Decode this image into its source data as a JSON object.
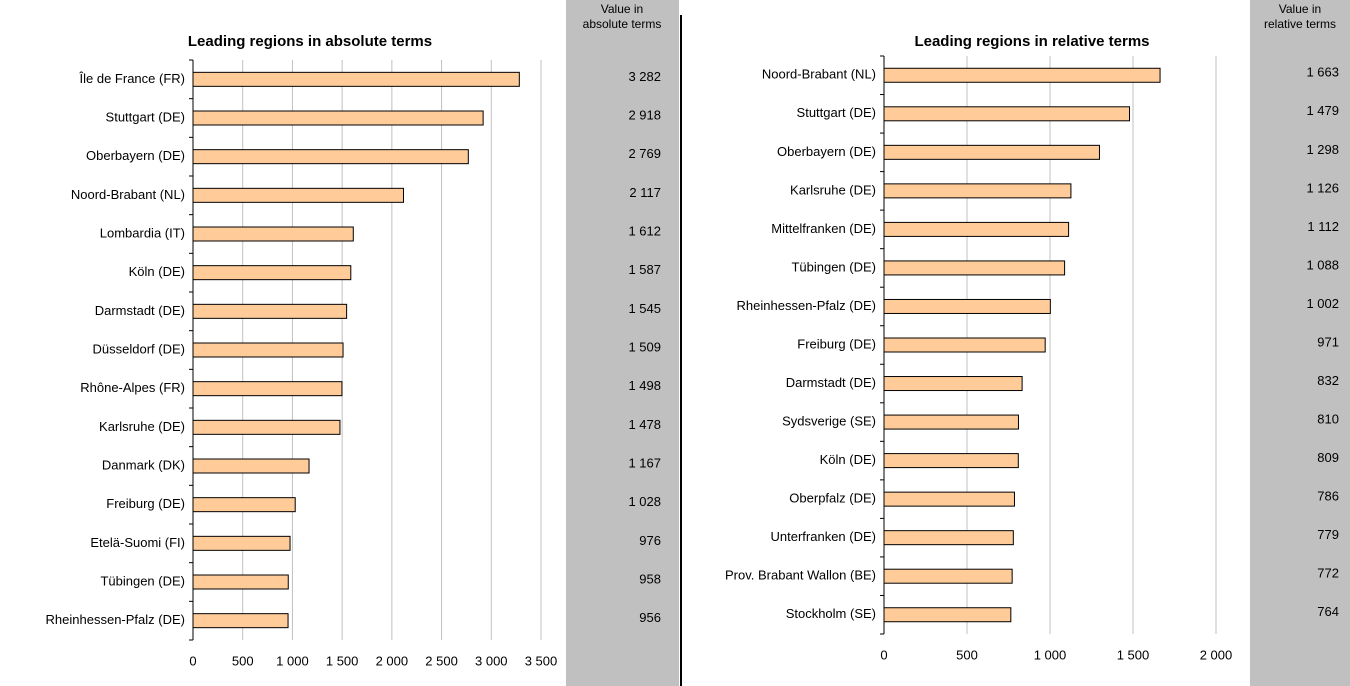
{
  "chart_data": [
    {
      "type": "bar",
      "orientation": "horizontal",
      "title": "Leading regions in absolute terms",
      "column_header": [
        "Value in",
        "absolute terms"
      ],
      "categories": [
        "Île de France (FR)",
        "Stuttgart (DE)",
        "Oberbayern (DE)",
        "Noord-Brabant (NL)",
        "Lombardia (IT)",
        "Köln (DE)",
        "Darmstadt (DE)",
        "Düsseldorf (DE)",
        "Rhône-Alpes (FR)",
        "Karlsruhe (DE)",
        "Danmark (DK)",
        "Freiburg (DE)",
        "Etelä-Suomi (FI)",
        "Tübingen (DE)",
        "Rheinhessen-Pfalz (DE)"
      ],
      "values": [
        3282,
        2918,
        2769,
        2117,
        1612,
        1587,
        1545,
        1509,
        1498,
        1478,
        1167,
        1028,
        976,
        958,
        956
      ],
      "value_labels": [
        "3 282",
        "2 918",
        "2 769",
        "2 117",
        "1 612",
        "1 587",
        "1 545",
        "1 509",
        "1 498",
        "1 478",
        "1 167",
        "1 028",
        "976",
        "958",
        "956"
      ],
      "color": "#ffcc99",
      "xlim": [
        0,
        3500
      ],
      "xticks": [
        0,
        500,
        {
          "value": 1000,
          "label": "1 000"
        },
        {
          "value": 1500,
          "label": "1 500"
        },
        {
          "value": 2000,
          "label": "2 000"
        },
        {
          "value": 2500,
          "label": "2 500"
        },
        {
          "value": 3000,
          "label": "3 000"
        },
        {
          "value": 3500,
          "label": "3 500"
        }
      ],
      "grid": true
    },
    {
      "type": "bar",
      "orientation": "horizontal",
      "title": "Leading regions in relative terms",
      "column_header": [
        "Value in",
        "relative terms"
      ],
      "categories": [
        "Noord-Brabant (NL)",
        "Stuttgart (DE)",
        "Oberbayern (DE)",
        "Karlsruhe (DE)",
        "Mittelfranken (DE)",
        "Tübingen (DE)",
        "Rheinhessen-Pfalz (DE)",
        "Freiburg (DE)",
        "Darmstadt (DE)",
        "Sydsverige (SE)",
        "Köln (DE)",
        "Oberpfalz (DE)",
        "Unterfranken (DE)",
        "Prov. Brabant Wallon (BE)",
        "Stockholm (SE)"
      ],
      "values": [
        1663,
        1479,
        1298,
        1126,
        1112,
        1088,
        1002,
        971,
        832,
        810,
        809,
        786,
        779,
        772,
        764
      ],
      "value_labels": [
        "1 663",
        "1 479",
        "1 298",
        "1 126",
        "1 112",
        "1 088",
        "1 002",
        "971",
        "832",
        "810",
        "809",
        "786",
        "779",
        "772",
        "764"
      ],
      "color": "#ffcc99",
      "xlim": [
        0,
        2000
      ],
      "xticks": [
        0,
        500,
        {
          "value": 1000,
          "label": "1 000"
        },
        {
          "value": 1500,
          "label": "1 500"
        },
        {
          "value": 2000,
          "label": "2 000"
        }
      ],
      "grid": true
    }
  ]
}
